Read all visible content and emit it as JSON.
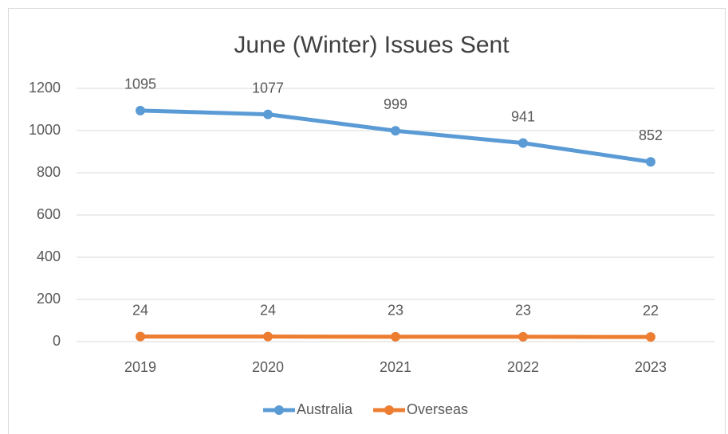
{
  "chart_data": {
    "type": "line",
    "title": "June (Winter) Issues Sent",
    "categories": [
      "2019",
      "2020",
      "2021",
      "2022",
      "2023"
    ],
    "series": [
      {
        "name": "Australia",
        "color": "#5b9bd5",
        "values": [
          1095,
          1077,
          999,
          941,
          852
        ]
      },
      {
        "name": "Overseas",
        "color": "#ed7d31",
        "values": [
          24,
          24,
          23,
          23,
          22
        ]
      }
    ],
    "ylim": [
      0,
      1200
    ],
    "yticks": [
      0,
      200,
      400,
      600,
      800,
      1000,
      1200
    ],
    "grid": true,
    "legend": "bottom",
    "data_labels": true
  }
}
